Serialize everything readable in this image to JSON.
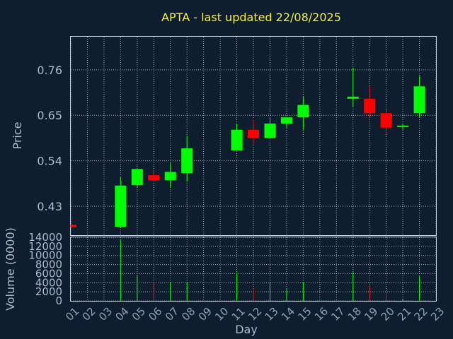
{
  "chart_data": {
    "type": "candlestick",
    "title": "APTA - last updated 22/08/2025",
    "xlabel": "Day",
    "price_panel": {
      "ylabel": "Price",
      "ylim": [
        0.36,
        0.84
      ],
      "yticks": [
        "0.43",
        "0.54",
        "0.65",
        "0.76"
      ],
      "grid": true
    },
    "volume_panel": {
      "ylabel": "Volume (0000)",
      "ylim": [
        0,
        14000
      ],
      "yticks": [
        "0",
        "2000",
        "4000",
        "6000",
        "8000",
        "10000",
        "12000",
        "14000"
      ],
      "grid": true
    },
    "x_tick_labels": [
      "01",
      "02",
      "03",
      "04",
      "05",
      "06",
      "07",
      "08",
      "09",
      "10",
      "11",
      "12",
      "13",
      "14",
      "15",
      "16",
      "17",
      "18",
      "19",
      "20",
      "21",
      "22",
      "23"
    ],
    "colors": {
      "up": "#00ff00",
      "down": "#ff0000",
      "background": "#0f1e2e"
    },
    "candles": [
      {
        "day": "01",
        "open": 0.385,
        "high": 0.385,
        "low": 0.379,
        "close": 0.379,
        "volume": 0
      },
      {
        "day": "04",
        "open": 0.38,
        "high": 0.5,
        "low": 0.38,
        "close": 0.48,
        "volume": 13500
      },
      {
        "day": "05",
        "open": 0.481,
        "high": 0.52,
        "low": 0.475,
        "close": 0.52,
        "volume": 5700
      },
      {
        "day": "06",
        "open": 0.505,
        "high": 0.516,
        "low": 0.49,
        "close": 0.493,
        "volume": 4000
      },
      {
        "day": "07",
        "open": 0.493,
        "high": 0.535,
        "low": 0.475,
        "close": 0.513,
        "volume": 4100
      },
      {
        "day": "08",
        "open": 0.51,
        "high": 0.6,
        "low": 0.49,
        "close": 0.57,
        "volume": 4100
      },
      {
        "day": "11",
        "open": 0.565,
        "high": 0.63,
        "low": 0.565,
        "close": 0.615,
        "volume": 6200
      },
      {
        "day": "12",
        "open": 0.615,
        "high": 0.64,
        "low": 0.58,
        "close": 0.595,
        "volume": 2700
      },
      {
        "day": "13",
        "open": 0.595,
        "high": 0.645,
        "low": 0.595,
        "close": 0.63,
        "volume": 3900
      },
      {
        "day": "14",
        "open": 0.63,
        "high": 0.645,
        "low": 0.62,
        "close": 0.645,
        "volume": 2600
      },
      {
        "day": "15",
        "open": 0.645,
        "high": 0.695,
        "low": 0.615,
        "close": 0.675,
        "volume": 4200
      },
      {
        "day": "18",
        "open": 0.69,
        "high": 0.765,
        "low": 0.67,
        "close": 0.695,
        "volume": 6300
      },
      {
        "day": "19",
        "open": 0.69,
        "high": 0.72,
        "low": 0.645,
        "close": 0.655,
        "volume": 3300
      },
      {
        "day": "20",
        "open": 0.655,
        "high": 0.665,
        "low": 0.605,
        "close": 0.62,
        "volume": 1900
      },
      {
        "day": "21",
        "open": 0.623,
        "high": 0.63,
        "low": 0.615,
        "close": 0.625,
        "volume": 400
      },
      {
        "day": "22",
        "open": 0.655,
        "high": 0.745,
        "low": 0.645,
        "close": 0.72,
        "volume": 5400
      }
    ]
  }
}
